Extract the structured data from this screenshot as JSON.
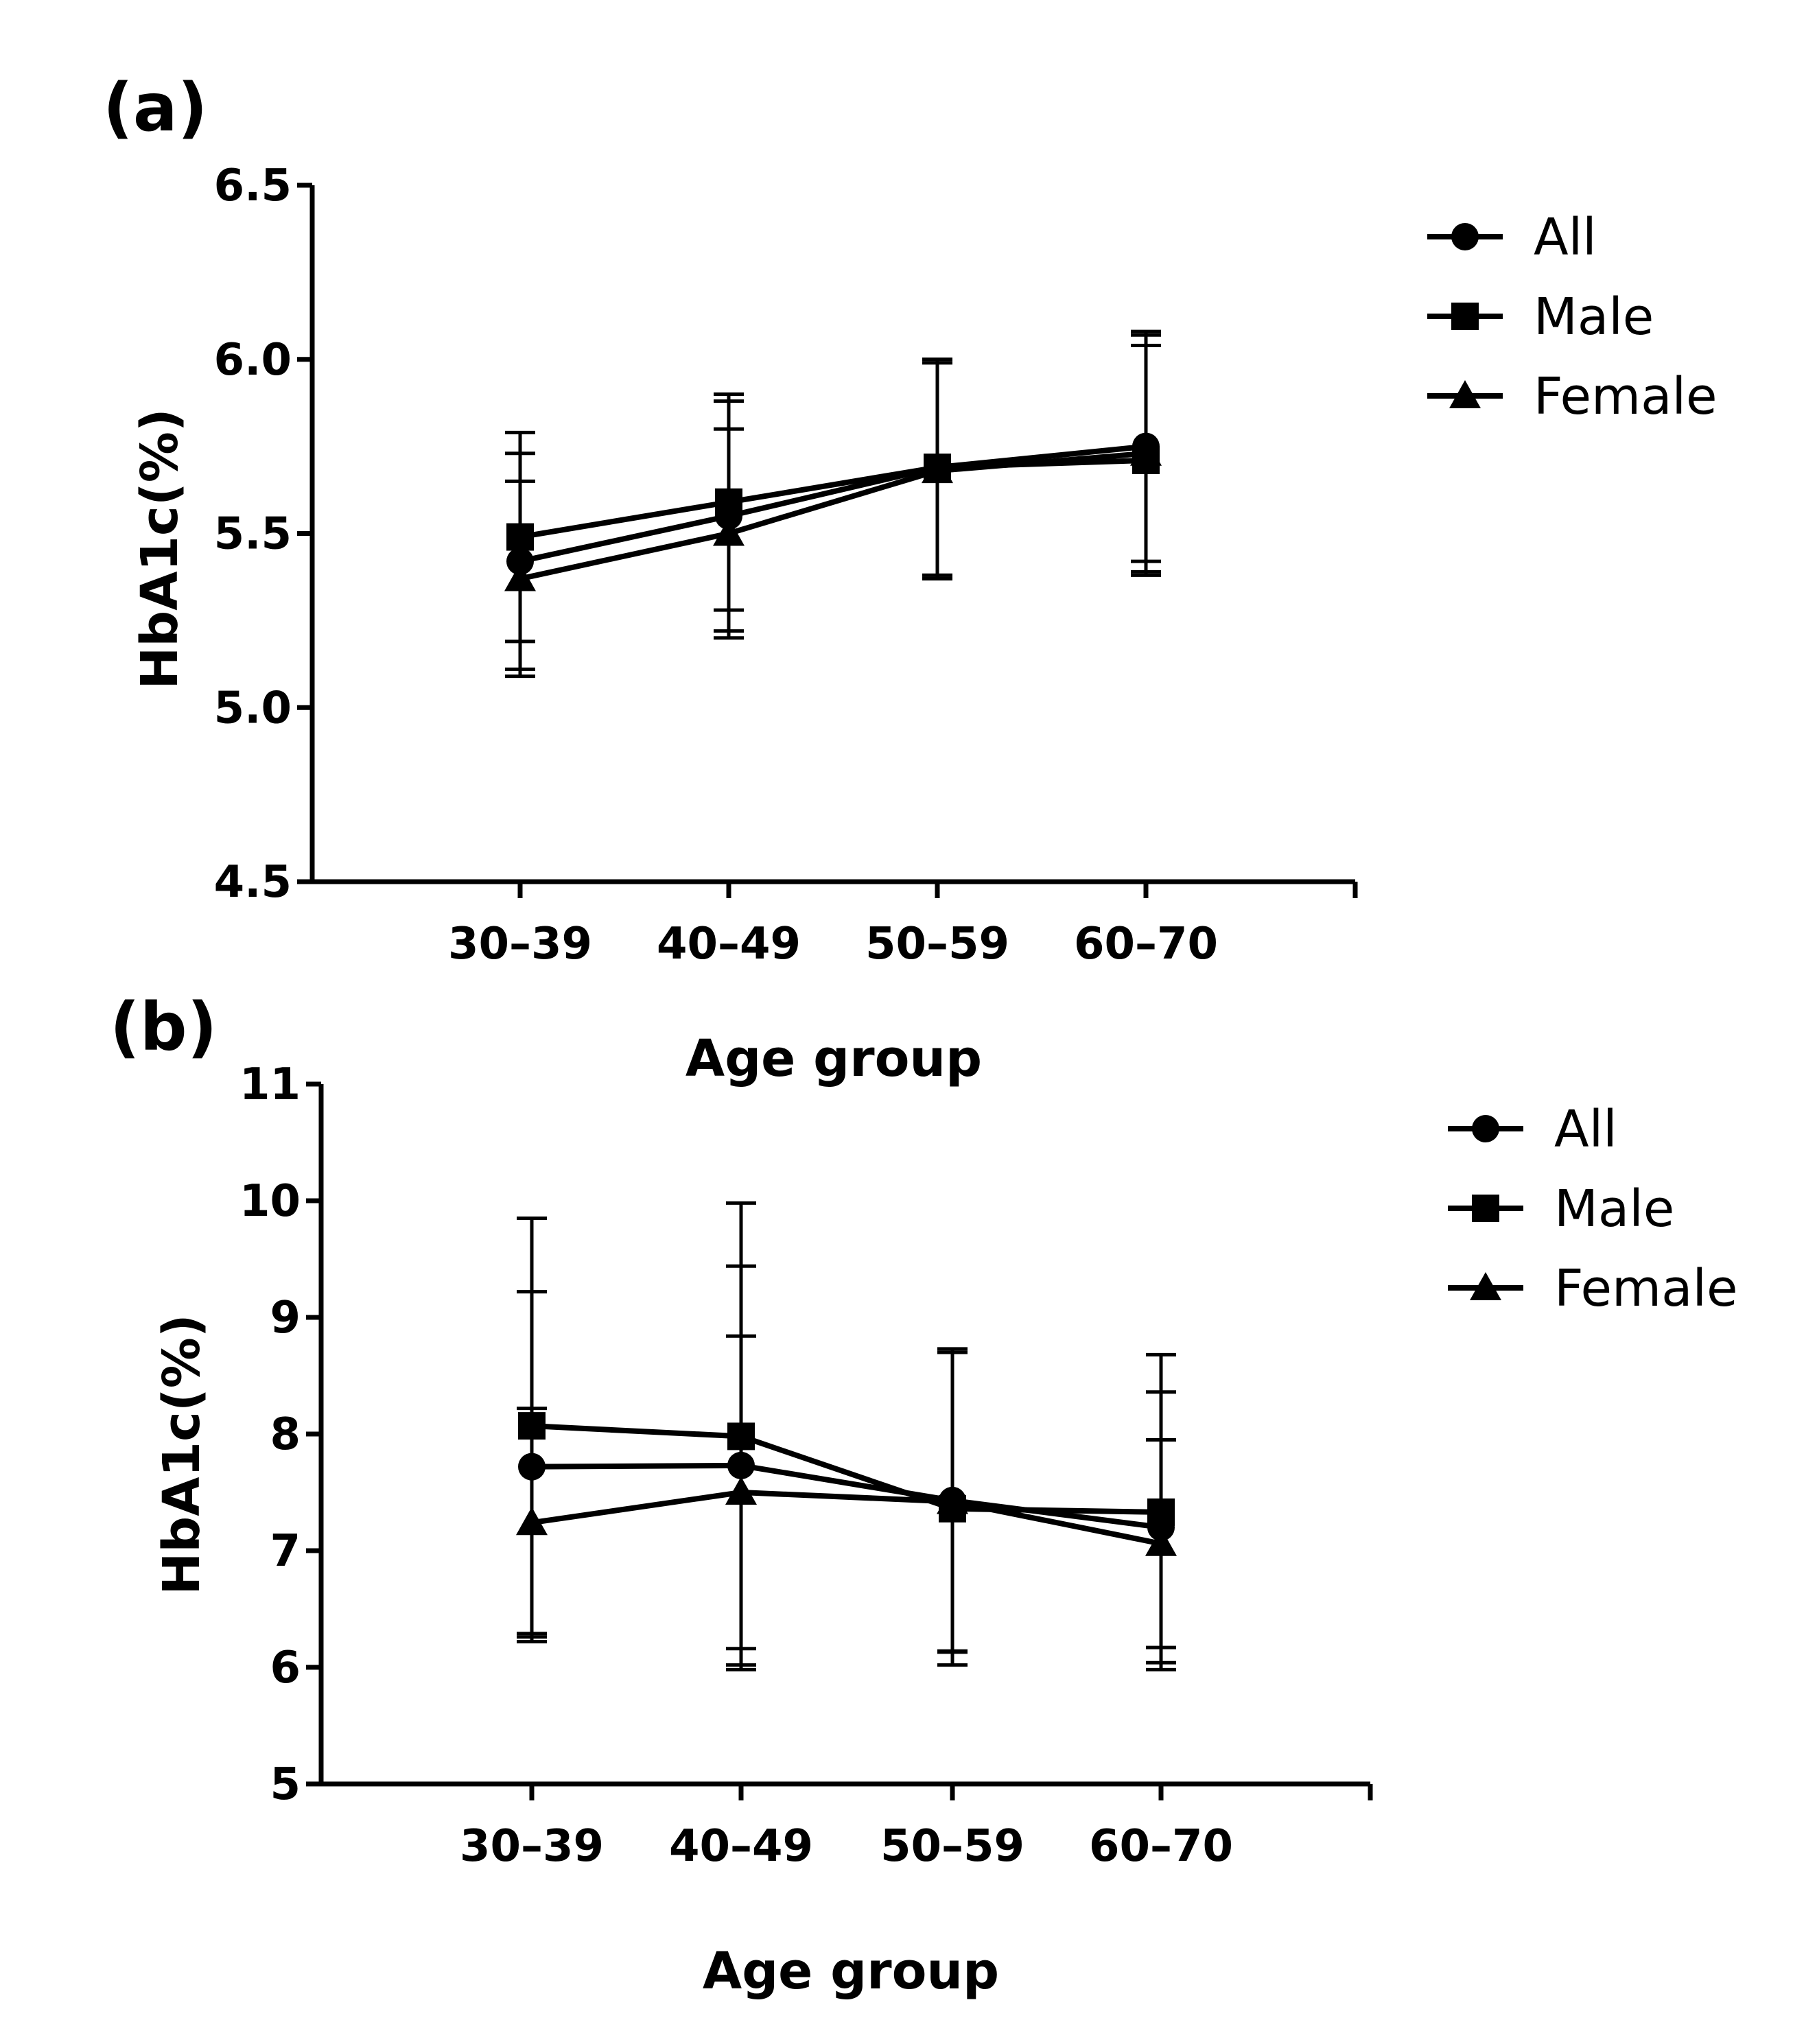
{
  "chart_data": [
    {
      "type": "line",
      "panel_label": "(a)",
      "xlabel": "Age group",
      "ylabel": "HbA1c(%)",
      "categories": [
        "30–39",
        "40–49",
        "50–59",
        "60–70"
      ],
      "ylim": [
        4.5,
        6.5
      ],
      "yticks": [
        "4.5",
        "5.0",
        "5.5",
        "6.0",
        "6.5"
      ],
      "grid": false,
      "legend": "right",
      "series": [
        {
          "name": "All",
          "marker": "circle",
          "values": [
            5.42,
            5.55,
            5.69,
            5.75
          ],
          "err": [
            0.31,
            0.33,
            0.31,
            0.33
          ]
        },
        {
          "name": "Male",
          "marker": "square",
          "values": [
            5.49,
            5.59,
            5.69,
            5.71
          ],
          "err": [
            0.3,
            0.31,
            0.31,
            0.33
          ]
        },
        {
          "name": "Female",
          "marker": "triangle",
          "values": [
            5.37,
            5.5,
            5.68,
            5.73
          ],
          "err": [
            0.28,
            0.3,
            0.31,
            0.34
          ]
        }
      ]
    },
    {
      "type": "line",
      "panel_label": "(b)",
      "xlabel": "Age group",
      "ylabel": "HbA1c(%)",
      "categories": [
        "30–39",
        "40–49",
        "50–59",
        "60–70"
      ],
      "ylim": [
        5,
        11
      ],
      "yticks": [
        "5",
        "6",
        "7",
        "8",
        "9",
        "10",
        "11"
      ],
      "grid": false,
      "legend": "right",
      "series": [
        {
          "name": "All",
          "marker": "circle",
          "values": [
            7.72,
            7.73,
            7.43,
            7.2
          ],
          "err": [
            1.5,
            1.71,
            1.3,
            1.16
          ]
        },
        {
          "name": "Male",
          "marker": "square",
          "values": [
            8.07,
            7.98,
            7.36,
            7.33
          ],
          "err": [
            1.78,
            2.0,
            1.34,
            1.35
          ]
        },
        {
          "name": "Female",
          "marker": "triangle",
          "values": [
            7.24,
            7.5,
            7.42,
            7.06
          ],
          "err": [
            0.98,
            1.34,
            1.28,
            0.89
          ]
        }
      ]
    }
  ]
}
